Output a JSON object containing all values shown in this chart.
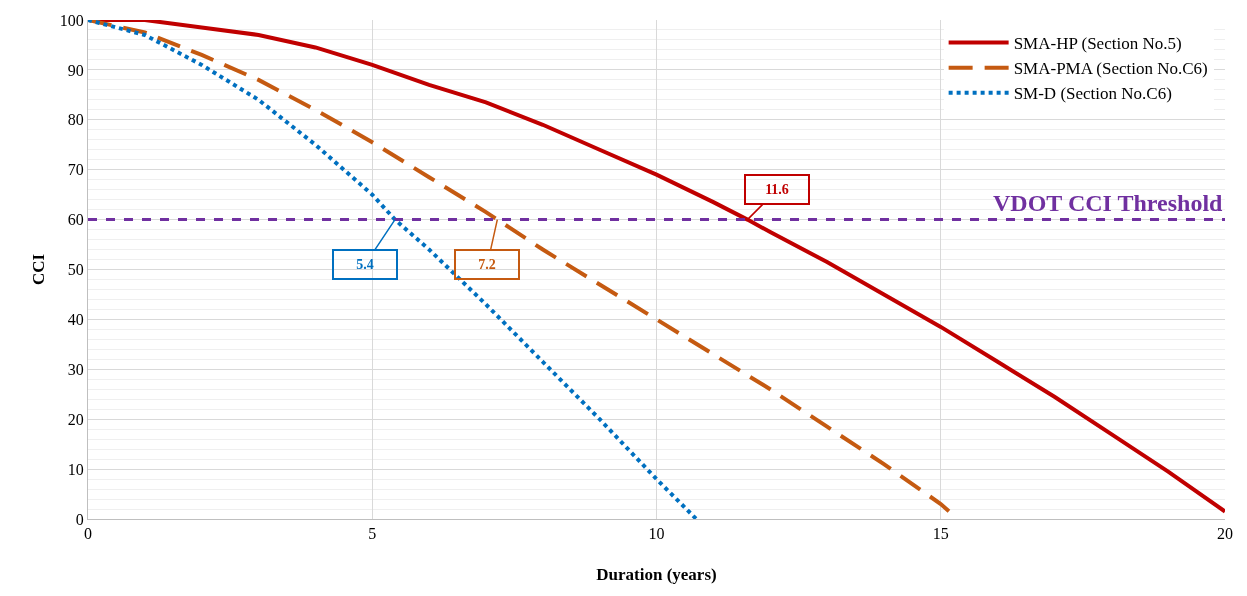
{
  "chart_data": {
    "type": "line",
    "xlabel": "Duration (years)",
    "ylabel": "CCI",
    "xlim": [
      0,
      20
    ],
    "xticks": [
      0,
      5,
      10,
      15,
      20
    ],
    "ylim": [
      0,
      100
    ],
    "yticks": [
      0,
      10,
      20,
      30,
      40,
      50,
      60,
      70,
      80,
      90,
      100
    ],
    "grid": true,
    "legend": "top right",
    "series": [
      {
        "name": "SMA-HP (Section No.5)",
        "color": "#c00000",
        "line_style": "solid",
        "x": [
          0,
          1,
          2,
          3,
          4,
          5,
          6,
          7,
          8,
          9,
          10,
          11,
          11.6,
          12,
          13,
          14,
          15,
          16,
          17,
          18,
          19,
          20
        ],
        "values": [
          100,
          100,
          98.5,
          97,
          94.5,
          91,
          87,
          83.5,
          79,
          74,
          69,
          63.5,
          60,
          57.5,
          51.5,
          45,
          38.5,
          31.5,
          24.5,
          17,
          9.5,
          1.5
        ]
      },
      {
        "name": "SMA-PMA (Section No.C6)",
        "color": "#c55a11",
        "line_style": "dashed",
        "x": [
          0,
          1,
          2,
          3,
          4,
          5,
          6,
          7,
          7.2,
          8,
          9,
          10,
          11,
          12,
          13,
          14,
          15,
          15.3
        ],
        "values": [
          100,
          97.5,
          93,
          88,
          82,
          75.5,
          68.5,
          61.5,
          60,
          54,
          47,
          40,
          33,
          26,
          18.5,
          11,
          3,
          0
        ]
      },
      {
        "name": "SM-D (Section No.C6)",
        "color": "#0070c0",
        "line_style": "dotted",
        "x": [
          0,
          1,
          2,
          3,
          4,
          5,
          5.4,
          6,
          7,
          8,
          9,
          10,
          10.7
        ],
        "values": [
          100,
          97,
          91,
          84,
          75,
          65,
          60,
          54,
          43,
          31.5,
          20,
          8,
          0
        ]
      }
    ],
    "ref_lines": [
      {
        "axis": "y",
        "value": 60,
        "label": "VDOT CCI Threshold",
        "color": "#7030a0",
        "line_style": "dashed"
      }
    ],
    "annotations": [
      {
        "text": "11.6",
        "x": 11.6,
        "y": 60
      },
      {
        "text": "7.2",
        "x": 7.2,
        "y": 60
      },
      {
        "text": "5.4",
        "x": 5.4,
        "y": 60
      }
    ]
  }
}
